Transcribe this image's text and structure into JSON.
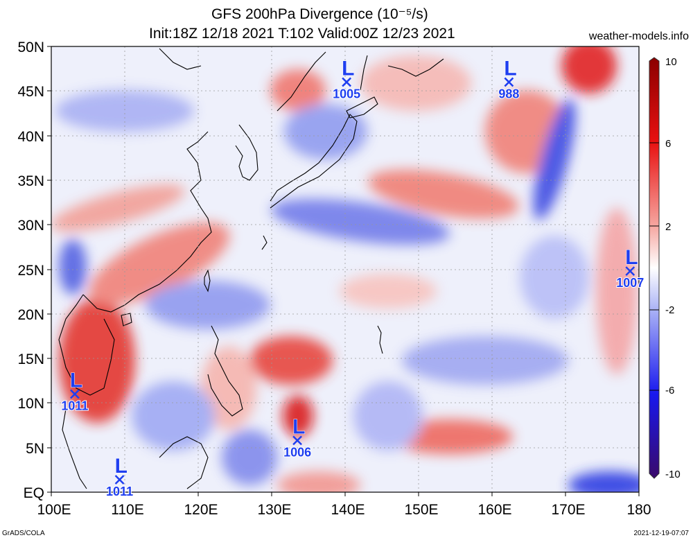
{
  "title": {
    "line1": "GFS 200hPa Divergence (10⁻⁵/s)",
    "line2": "Init:18Z 12/18 2021 T:102 Valid:00Z 12/23 2021"
  },
  "site": "weather-models.info",
  "footer": {
    "left": "GrADS/COLA",
    "right": "2021-12-19-07:07"
  },
  "axes": {
    "lat_labels": [
      "EQ",
      "5N",
      "10N",
      "15N",
      "20N",
      "25N",
      "30N",
      "35N",
      "40N",
      "45N",
      "50N"
    ],
    "lon_labels": [
      "100E",
      "110E",
      "120E",
      "130E",
      "140E",
      "150E",
      "160E",
      "170E",
      "180"
    ]
  },
  "colorbar": {
    "labels": [
      "10",
      "6",
      "2",
      "-2",
      "-6",
      "-10"
    ],
    "range": [
      -10,
      10
    ]
  },
  "lows": [
    {
      "letter": "L",
      "pressure": "1005",
      "lon": 140.2,
      "lat": 46.0
    },
    {
      "letter": "L",
      "pressure": "988",
      "lon": 162.3,
      "lat": 46.0
    },
    {
      "letter": "L",
      "pressure": "1007",
      "lon": 178.8,
      "lat": 24.8
    },
    {
      "letter": "L",
      "pressure": "1011",
      "lon": 103.2,
      "lat": 11.0
    },
    {
      "letter": "L",
      "pressure": "1006",
      "lon": 133.5,
      "lat": 5.8
    },
    {
      "letter": "L",
      "pressure": "1011",
      "lon": 109.3,
      "lat": 1.4
    }
  ],
  "colors": {
    "positive_strong": "#e00000",
    "positive_weak": "#f4a8a0",
    "negative_strong": "#1010f0",
    "negative_weak": "#a8b0f4",
    "low_marker": "#1e3ef0"
  }
}
